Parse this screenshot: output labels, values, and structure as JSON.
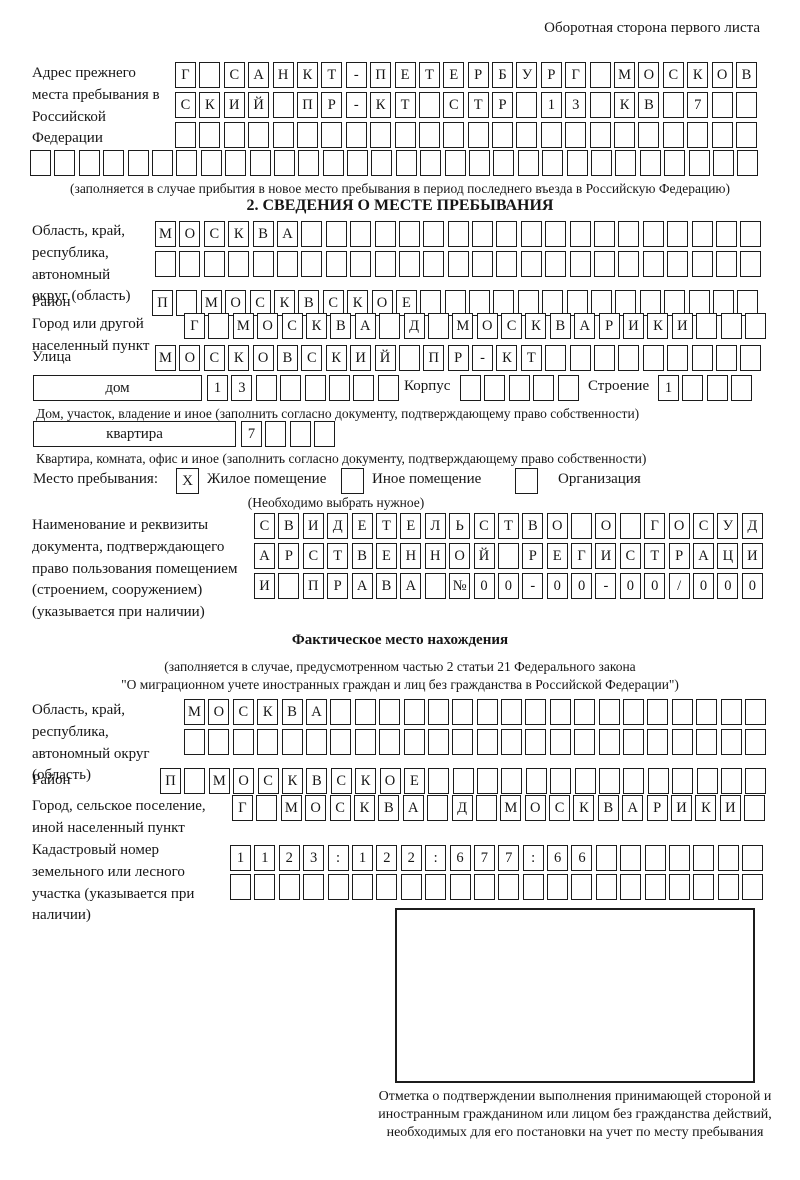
{
  "header": {
    "note": "Оборотная сторона первого листа"
  },
  "prev_address": {
    "label": "Адрес прежнего места пребывания в Российской Федерации",
    "rows": {
      "r1": [
        "Г",
        "",
        "С",
        "А",
        "Н",
        "К",
        "Т",
        "-",
        "П",
        "Е",
        "Т",
        "Е",
        "Р",
        "Б",
        "У",
        "Р",
        "Г",
        "",
        "М",
        "О",
        "С",
        "К",
        "О",
        "В"
      ],
      "r2": [
        "С",
        "К",
        "И",
        "Й",
        "",
        "П",
        "Р",
        "-",
        "К",
        "Т",
        "",
        "С",
        "Т",
        "Р",
        "",
        "1",
        "3",
        "",
        "К",
        "В",
        "",
        "7",
        "",
        ""
      ],
      "r3": [
        "",
        "",
        "",
        "",
        "",
        "",
        "",
        "",
        "",
        "",
        "",
        "",
        "",
        "",
        "",
        "",
        "",
        "",
        "",
        "",
        "",
        "",
        "",
        ""
      ],
      "r4": [
        "",
        "",
        "",
        "",
        "",
        "",
        "",
        "",
        "",
        "",
        "",
        "",
        "",
        "",
        "",
        "",
        "",
        "",
        "",
        "",
        "",
        "",
        "",
        "",
        "",
        "",
        "",
        "",
        "",
        ""
      ]
    },
    "note": "(заполняется в случае прибытия в новое место пребывания в период последнего въезда в Российскую Федерацию)"
  },
  "section2": {
    "title": "2. СВЕДЕНИЯ О МЕСТЕ ПРЕБЫВАНИЯ",
    "region": {
      "label": "Область, край, республика, автономный округ (область)",
      "rows": {
        "r1": [
          "М",
          "О",
          "С",
          "К",
          "В",
          "А",
          "",
          "",
          "",
          "",
          "",
          "",
          "",
          "",
          "",
          "",
          "",
          "",
          "",
          "",
          "",
          "",
          "",
          "",
          ""
        ],
        "r2": [
          "",
          "",
          "",
          "",
          "",
          "",
          "",
          "",
          "",
          "",
          "",
          "",
          "",
          "",
          "",
          "",
          "",
          "",
          "",
          "",
          "",
          "",
          "",
          "",
          ""
        ]
      }
    },
    "district": {
      "label": "Район",
      "row": [
        "П",
        "",
        "М",
        "О",
        "С",
        "К",
        "В",
        "С",
        "К",
        "О",
        "Е",
        "",
        "",
        "",
        "",
        "",
        "",
        "",
        "",
        "",
        "",
        "",
        "",
        "",
        ""
      ]
    },
    "city": {
      "label": "Город или другой населенный пункт",
      "row": [
        "Г",
        "",
        "М",
        "О",
        "С",
        "К",
        "В",
        "А",
        "",
        "Д",
        "",
        "М",
        "О",
        "С",
        "К",
        "В",
        "А",
        "Р",
        "И",
        "К",
        "И",
        "",
        "",
        ""
      ]
    },
    "street": {
      "label": "Улица",
      "row": [
        "М",
        "О",
        "С",
        "К",
        "О",
        "В",
        "С",
        "К",
        "И",
        "Й",
        "",
        "П",
        "Р",
        "-",
        "К",
        "Т",
        "",
        "",
        "",
        "",
        "",
        "",
        "",
        "",
        ""
      ]
    },
    "house": {
      "box_label": "дом",
      "cells": [
        "1",
        "3",
        "",
        "",
        "",
        "",
        "",
        ""
      ],
      "korpus_label": "Корпус",
      "korpus_cells": [
        "",
        "",
        "",
        "",
        ""
      ],
      "stroenie_label": "Строение",
      "stroenie_cells": [
        "1",
        "",
        "",
        ""
      ],
      "caption": "Дом, участок, владение и иное (заполнить согласно документу, подтверждающему право собственности)"
    },
    "flat": {
      "box_label": "квартира",
      "cells": [
        "7",
        "",
        "",
        ""
      ],
      "caption": "Квартира, комната, офис и иное (заполнить согласно документу, подтверждающему право собственности)"
    },
    "placement": {
      "label": "Место пребывания:",
      "options": [
        {
          "label": "Жилое помещение",
          "value": "X"
        },
        {
          "label": "Иное помещение",
          "value": ""
        },
        {
          "label": "Организация",
          "value": ""
        }
      ],
      "note": "(Необходимо выбрать нужное)"
    },
    "doc": {
      "label": "Наименование и реквизиты документа, подтверждающего право пользования помещением (строением, сооружением) (указывается при наличии)",
      "rows": {
        "r1": [
          "С",
          "В",
          "И",
          "Д",
          "Е",
          "Т",
          "Е",
          "Л",
          "Ь",
          "С",
          "Т",
          "В",
          "О",
          "",
          "О",
          "",
          "Г",
          "О",
          "С",
          "У",
          "Д"
        ],
        "r2": [
          "А",
          "Р",
          "С",
          "Т",
          "В",
          "Е",
          "Н",
          "Н",
          "О",
          "Й",
          "",
          "Р",
          "Е",
          "Г",
          "И",
          "С",
          "Т",
          "Р",
          "А",
          "Ц",
          "И"
        ],
        "r3": [
          "И",
          "",
          "П",
          "Р",
          "А",
          "В",
          "А",
          "",
          "№",
          "0",
          "0",
          "-",
          "0",
          "0",
          "-",
          "0",
          "0",
          "/",
          "0",
          "0",
          "0"
        ]
      }
    }
  },
  "fact": {
    "title": "Фактическое место нахождения",
    "note1": "(заполняется в случае, предусмотренном частью 2 статьи 21 Федерального закона",
    "note2": "\"О миграционном учете иностранных граждан и лиц без гражданства в Российской Федерации\")",
    "region": {
      "label": "Область, край, республика, автономный округ (область)",
      "rows": {
        "r1": [
          "М",
          "О",
          "С",
          "К",
          "В",
          "А",
          "",
          "",
          "",
          "",
          "",
          "",
          "",
          "",
          "",
          "",
          "",
          "",
          "",
          "",
          "",
          "",
          "",
          ""
        ],
        "r2": [
          "",
          "",
          "",
          "",
          "",
          "",
          "",
          "",
          "",
          "",
          "",
          "",
          "",
          "",
          "",
          "",
          "",
          "",
          "",
          "",
          "",
          "",
          "",
          ""
        ]
      }
    },
    "district": {
      "label": "Район",
      "row": [
        "П",
        "",
        "М",
        "О",
        "С",
        "К",
        "В",
        "С",
        "К",
        "О",
        "Е",
        "",
        "",
        "",
        "",
        "",
        "",
        "",
        "",
        "",
        "",
        "",
        "",
        "",
        ""
      ]
    },
    "city": {
      "label": "Город, сельское поселение, иной населенный пункт",
      "row": [
        "Г",
        "",
        "М",
        "О",
        "С",
        "К",
        "В",
        "А",
        "",
        "Д",
        "",
        "М",
        "О",
        "С",
        "К",
        "В",
        "А",
        "Р",
        "И",
        "К",
        "И",
        ""
      ]
    },
    "cadastre": {
      "label": "Кадастровый номер земельного или лесного участка (указывается при наличии)",
      "rows": {
        "r1": [
          "1",
          "1",
          "2",
          "3",
          ":",
          "1",
          "2",
          "2",
          ":",
          "6",
          "7",
          "7",
          ":",
          "6",
          "6",
          "",
          "",
          "",
          "",
          "",
          "",
          ""
        ],
        "r2": [
          "",
          "",
          "",
          "",
          "",
          "",
          "",
          "",
          "",
          "",
          "",
          "",
          "",
          "",
          "",
          "",
          "",
          "",
          "",
          "",
          "",
          ""
        ]
      }
    },
    "stamp_caption": "Отметка о подтверждении выполнения принимающей стороной и иностранным гражданином или лицом без гражданства действий, необходимых для его постановки на учет по месту пребывания"
  }
}
